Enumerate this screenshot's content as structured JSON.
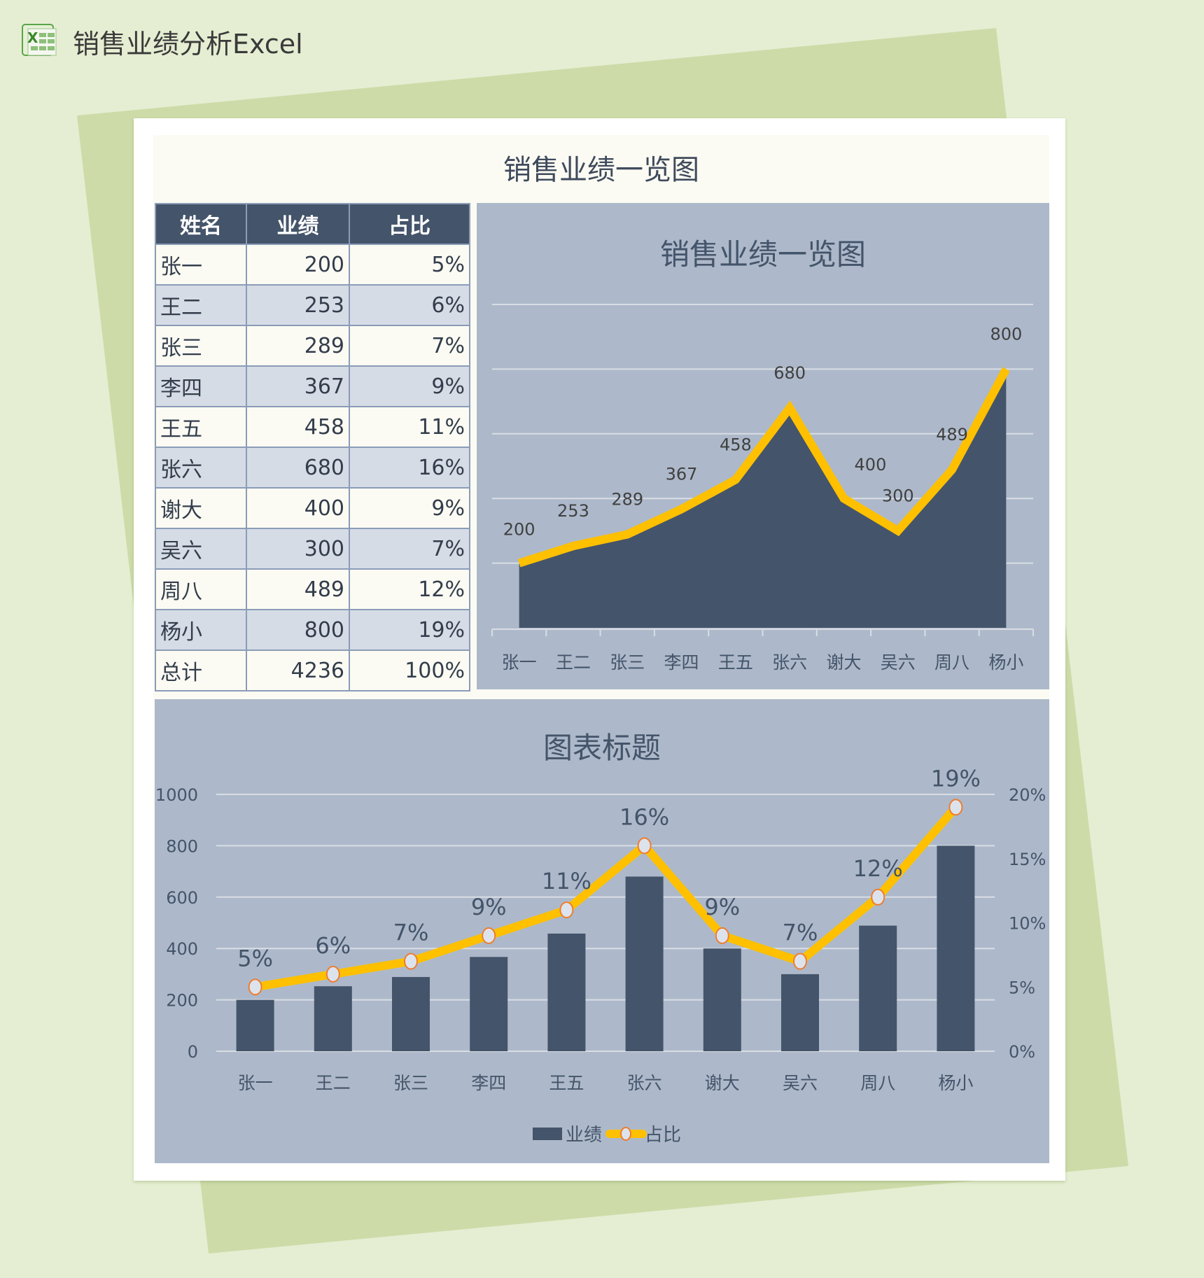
{
  "app": {
    "title": "销售业绩分析Excel",
    "icon": "excel-icon"
  },
  "sheet": {
    "title": "销售业绩一览图"
  },
  "table": {
    "headers": [
      "姓名",
      "业绩",
      "占比"
    ],
    "rows": [
      {
        "name": "张一",
        "value": "200",
        "pct": "5%"
      },
      {
        "name": "王二",
        "value": "253",
        "pct": "6%"
      },
      {
        "name": "张三",
        "value": "289",
        "pct": "7%"
      },
      {
        "name": "李四",
        "value": "367",
        "pct": "9%"
      },
      {
        "name": "王五",
        "value": "458",
        "pct": "11%"
      },
      {
        "name": "张六",
        "value": "680",
        "pct": "16%"
      },
      {
        "name": "谢大",
        "value": "400",
        "pct": "9%"
      },
      {
        "name": "吴六",
        "value": "300",
        "pct": "7%"
      },
      {
        "name": "周八",
        "value": "489",
        "pct": "12%"
      },
      {
        "name": "杨小",
        "value": "800",
        "pct": "19%"
      },
      {
        "name": "总计",
        "value": "4236",
        "pct": "100%"
      }
    ]
  },
  "colors": {
    "page_bg": "#e5eed2",
    "accent_green": "#cddba9",
    "panel_bg": "#adb9ca",
    "dark_navy": "#44546a",
    "line_yellow": "#ffc000",
    "marker_border": "#ed7d31",
    "marker_fill": "#dde3ec",
    "gridline": "#d9dde4"
  },
  "chart_data": [
    {
      "type": "area",
      "title": "销售业绩一览图",
      "categories": [
        "张一",
        "王二",
        "张三",
        "李四",
        "王五",
        "张六",
        "谢大",
        "吴六",
        "周八",
        "杨小"
      ],
      "series": [
        {
          "name": "业绩",
          "values": [
            200,
            253,
            289,
            367,
            458,
            680,
            400,
            300,
            489,
            800
          ]
        }
      ],
      "data_labels": [
        "200",
        "253",
        "289",
        "367",
        "458",
        "680",
        "400",
        "300",
        "489",
        "800"
      ],
      "ylim": [
        0,
        1000
      ],
      "grid": true,
      "legend": "none",
      "xlabel": "",
      "ylabel": ""
    },
    {
      "type": "bar",
      "title": "图表标题",
      "categories": [
        "张一",
        "王二",
        "张三",
        "李四",
        "王五",
        "张六",
        "谢大",
        "吴六",
        "周八",
        "杨小"
      ],
      "series": [
        {
          "name": "业绩",
          "type": "bar",
          "axis": "left",
          "values": [
            200,
            253,
            289,
            367,
            458,
            680,
            400,
            300,
            489,
            800
          ]
        },
        {
          "name": "占比",
          "type": "line",
          "axis": "right",
          "values": [
            5,
            6,
            7,
            9,
            11,
            16,
            9,
            7,
            12,
            19
          ],
          "labels": [
            "5%",
            "6%",
            "7%",
            "9%",
            "11%",
            "16%",
            "9%",
            "7%",
            "12%",
            "19%"
          ]
        }
      ],
      "ylim": [
        0,
        1000
      ],
      "y_ticks": [
        "0",
        "200",
        "400",
        "600",
        "800",
        "1000"
      ],
      "y2lim": [
        0,
        20
      ],
      "y2_ticks": [
        "0%",
        "5%",
        "10%",
        "15%",
        "20%"
      ],
      "grid": true,
      "legend": {
        "position": "bottom",
        "entries": [
          "业绩",
          "占比"
        ]
      },
      "xlabel": "",
      "ylabel": ""
    }
  ]
}
